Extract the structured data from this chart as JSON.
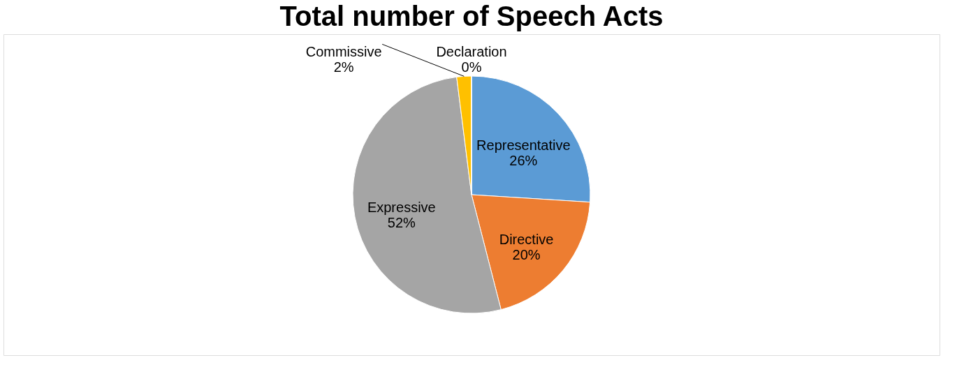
{
  "chart_data": {
    "type": "pie",
    "title": "Total number of Speech Acts",
    "categories": [
      "Representative",
      "Directive",
      "Expressive",
      "Commissive",
      "Declaration"
    ],
    "values": [
      26,
      20,
      52,
      2,
      0
    ],
    "value_labels": [
      "26%",
      "20%",
      "52%",
      "2%",
      "0%"
    ],
    "colors": [
      "#5b9bd5",
      "#ed7d31",
      "#a5a5a5",
      "#ffc000",
      "#4472c4"
    ],
    "legend": false
  }
}
